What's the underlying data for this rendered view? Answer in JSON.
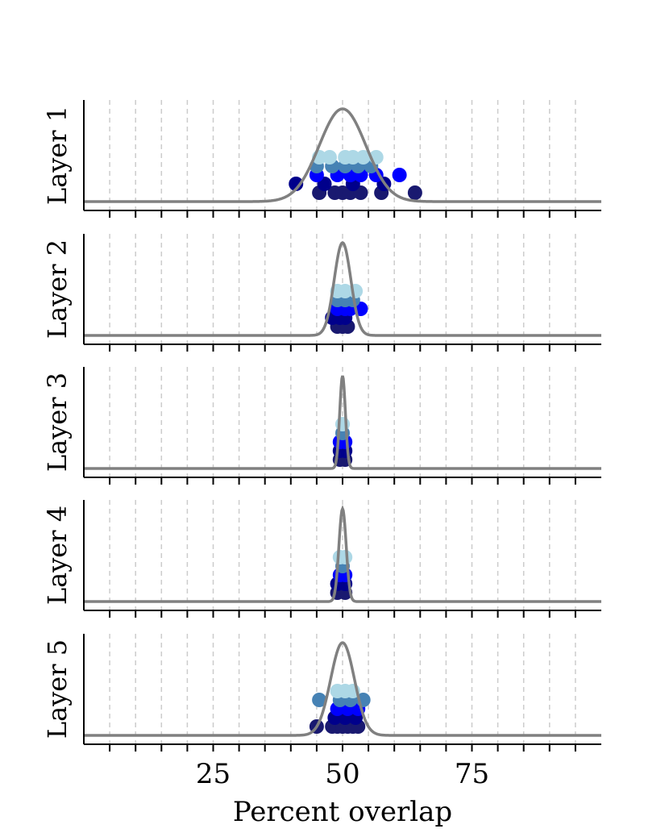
{
  "chart_data": {
    "type": "scatter",
    "xlabel": "Percent overlap",
    "xlim": [
      0,
      100
    ],
    "xticks": [
      25,
      50,
      75
    ],
    "minor_xticks": [
      5,
      10,
      15,
      20,
      25,
      30,
      35,
      40,
      45,
      50,
      55,
      60,
      65,
      70,
      75,
      80,
      85,
      90,
      95
    ],
    "grid": "vertical dashed at minor ticks",
    "colors": {
      "curve": "#808080",
      "grid": "#cccccc",
      "axis": "#000000",
      "levels": [
        "#191970",
        "#00008b",
        "#0000ff",
        "#4682b4",
        "#add8e6"
      ]
    },
    "panels": [
      {
        "ylabel": "Layer 1",
        "curve": {
          "mean": 50,
          "sd": 4.5
        },
        "points": [
          {
            "x": 45.5,
            "level": 0
          },
          {
            "x": 48.5,
            "level": 0
          },
          {
            "x": 50.0,
            "level": 0
          },
          {
            "x": 51.5,
            "level": 0
          },
          {
            "x": 53.5,
            "level": 0
          },
          {
            "x": 57.5,
            "level": 0
          },
          {
            "x": 64.0,
            "level": 0
          },
          {
            "x": 41.0,
            "level": 1
          },
          {
            "x": 46.5,
            "level": 1
          },
          {
            "x": 52.0,
            "level": 1
          },
          {
            "x": 58.0,
            "level": 1
          },
          {
            "x": 45.0,
            "level": 2
          },
          {
            "x": 49.0,
            "level": 2
          },
          {
            "x": 51.5,
            "level": 2
          },
          {
            "x": 53.5,
            "level": 2
          },
          {
            "x": 56.5,
            "level": 2
          },
          {
            "x": 61.0,
            "level": 2
          },
          {
            "x": 45.0,
            "level": 3
          },
          {
            "x": 48.0,
            "level": 3
          },
          {
            "x": 50.5,
            "level": 3
          },
          {
            "x": 53.0,
            "level": 3
          },
          {
            "x": 55.5,
            "level": 3
          },
          {
            "x": 45.5,
            "level": 4
          },
          {
            "x": 47.5,
            "level": 4
          },
          {
            "x": 50.5,
            "level": 4
          },
          {
            "x": 52.0,
            "level": 4
          },
          {
            "x": 54.0,
            "level": 4
          },
          {
            "x": 56.5,
            "level": 4
          }
        ]
      },
      {
        "ylabel": "Layer 2",
        "curve": {
          "mean": 50,
          "sd": 1.6
        },
        "points": [
          {
            "x": 49.0,
            "level": 0
          },
          {
            "x": 50.0,
            "level": 0
          },
          {
            "x": 51.0,
            "level": 0
          },
          {
            "x": 48.0,
            "level": 1
          },
          {
            "x": 49.5,
            "level": 1
          },
          {
            "x": 50.5,
            "level": 1
          },
          {
            "x": 49.0,
            "level": 2
          },
          {
            "x": 50.5,
            "level": 2
          },
          {
            "x": 51.5,
            "level": 2
          },
          {
            "x": 53.5,
            "level": 2
          },
          {
            "x": 49.0,
            "level": 3
          },
          {
            "x": 50.5,
            "level": 3
          },
          {
            "x": 52.0,
            "level": 3
          },
          {
            "x": 49.0,
            "level": 4
          },
          {
            "x": 50.5,
            "level": 4
          },
          {
            "x": 52.5,
            "level": 4
          }
        ]
      },
      {
        "ylabel": "Layer 3",
        "curve": {
          "mean": 50,
          "sd": 0.55
        },
        "points": [
          {
            "x": 49.5,
            "level": 0
          },
          {
            "x": 50.5,
            "level": 0
          },
          {
            "x": 49.5,
            "level": 1
          },
          {
            "x": 50.5,
            "level": 1
          },
          {
            "x": 49.5,
            "level": 2
          },
          {
            "x": 50.5,
            "level": 2
          },
          {
            "x": 50.0,
            "level": 3
          },
          {
            "x": 50.0,
            "level": 4
          }
        ]
      },
      {
        "ylabel": "Layer 4",
        "curve": {
          "mean": 50,
          "sd": 0.7
        },
        "points": [
          {
            "x": 49.0,
            "level": 0
          },
          {
            "x": 50.5,
            "level": 0
          },
          {
            "x": 49.0,
            "level": 1
          },
          {
            "x": 50.5,
            "level": 1
          },
          {
            "x": 49.5,
            "level": 2
          },
          {
            "x": 50.5,
            "level": 2
          },
          {
            "x": 50.0,
            "level": 3
          },
          {
            "x": 49.5,
            "level": 4
          },
          {
            "x": 50.5,
            "level": 4
          }
        ]
      },
      {
        "ylabel": "Layer 5",
        "curve": {
          "mean": 50,
          "sd": 2.3
        },
        "points": [
          {
            "x": 45.0,
            "level": 0
          },
          {
            "x": 48.0,
            "level": 0
          },
          {
            "x": 49.0,
            "level": 0
          },
          {
            "x": 50.0,
            "level": 0
          },
          {
            "x": 51.0,
            "level": 0
          },
          {
            "x": 52.0,
            "level": 0
          },
          {
            "x": 53.0,
            "level": 0
          },
          {
            "x": 48.5,
            "level": 1
          },
          {
            "x": 50.5,
            "level": 1
          },
          {
            "x": 52.5,
            "level": 1
          },
          {
            "x": 49.0,
            "level": 2
          },
          {
            "x": 51.0,
            "level": 2
          },
          {
            "x": 53.0,
            "level": 2
          },
          {
            "x": 45.5,
            "level": 3
          },
          {
            "x": 49.5,
            "level": 3
          },
          {
            "x": 51.5,
            "level": 3
          },
          {
            "x": 54.0,
            "level": 3
          },
          {
            "x": 49.0,
            "level": 4
          },
          {
            "x": 50.5,
            "level": 4
          },
          {
            "x": 52.0,
            "level": 4
          }
        ]
      }
    ]
  }
}
